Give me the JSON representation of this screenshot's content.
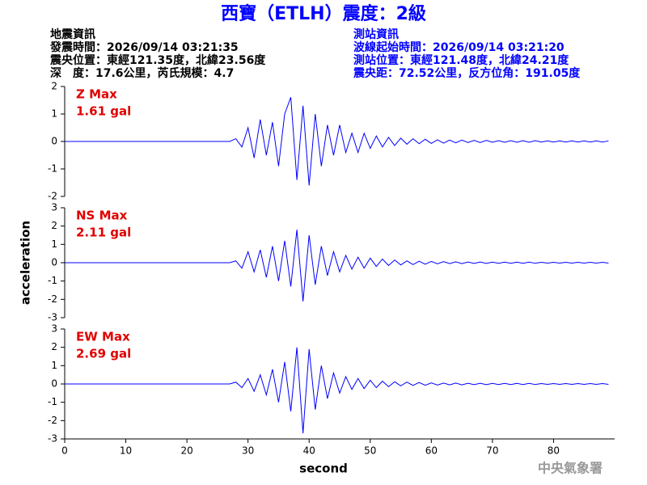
{
  "header": {
    "title": "西寶（ETLH）震度：2級",
    "left": [
      "地震資訊",
      "發震時間：2026/09/14 03:21:35",
      "震央位置：東經121.35度，北緯23.56度",
      "深　度：17.6公里，芮氏規模：4.7"
    ],
    "right": [
      "測站資訊",
      "波線起始時間：2026/09/14 03:21:20",
      "測站位置：東經121.48度，北緯24.21度",
      "震央距：72.52公里，反方位角：191.05度"
    ],
    "footer": "中央氣象署"
  },
  "chart_data": [
    {
      "type": "line",
      "annotation": [
        "Z Max",
        "1.61 gal"
      ],
      "x": [
        0,
        27,
        28,
        29,
        30,
        31,
        32,
        33,
        34,
        35,
        36,
        37,
        38,
        39,
        40,
        41,
        42,
        43,
        44,
        45,
        46,
        47,
        48,
        49,
        50,
        51,
        52,
        53,
        54,
        55,
        56,
        57,
        58,
        59,
        60,
        61,
        62,
        63,
        64,
        65,
        66,
        67,
        68,
        69,
        70,
        71,
        72,
        73,
        74,
        75,
        76,
        77,
        78,
        79,
        80,
        81,
        82,
        83,
        84,
        85,
        86,
        87,
        88,
        89
      ],
      "series": [
        {
          "color": "#0000ff",
          "values": [
            0,
            0,
            0.1,
            -0.2,
            0.5,
            -0.6,
            0.8,
            -0.5,
            0.7,
            -0.9,
            1.0,
            1.61,
            -1.4,
            1.3,
            -1.6,
            1.0,
            -0.9,
            0.6,
            -0.5,
            0.6,
            -0.4,
            0.3,
            -0.4,
            0.3,
            -0.25,
            0.2,
            -0.2,
            0.15,
            -0.15,
            0.12,
            -0.1,
            0.1,
            -0.08,
            0.08,
            -0.07,
            0.06,
            -0.06,
            0.05,
            -0.05,
            0.05,
            -0.04,
            0.04,
            -0.04,
            0.04,
            -0.03,
            0.03,
            -0.03,
            0.03,
            -0.03,
            0.03,
            -0.03,
            0.03,
            -0.02,
            0.02,
            -0.02,
            0.02,
            -0.02,
            0.02,
            -0.02,
            0.02,
            -0.02,
            0.02,
            -0.02,
            0.02
          ]
        }
      ],
      "xlim": [
        0,
        90
      ],
      "ylim": [
        -2,
        2
      ],
      "yticks": [
        -2,
        -1,
        0,
        1,
        2
      ]
    },
    {
      "type": "line",
      "annotation": [
        "NS Max",
        "2.11 gal"
      ],
      "ylabel": "acceleration",
      "x": [
        0,
        27,
        28,
        29,
        30,
        31,
        32,
        33,
        34,
        35,
        36,
        37,
        38,
        39,
        40,
        41,
        42,
        43,
        44,
        45,
        46,
        47,
        48,
        49,
        50,
        51,
        52,
        53,
        54,
        55,
        56,
        57,
        58,
        59,
        60,
        61,
        62,
        63,
        64,
        65,
        66,
        67,
        68,
        69,
        70,
        71,
        72,
        73,
        74,
        75,
        76,
        77,
        78,
        79,
        80,
        81,
        82,
        83,
        84,
        85,
        86,
        87,
        88,
        89
      ],
      "series": [
        {
          "color": "#0000ff",
          "values": [
            0,
            0,
            0.1,
            -0.3,
            0.6,
            -0.5,
            0.7,
            -0.8,
            0.9,
            -1.0,
            1.2,
            -1.3,
            1.8,
            -2.11,
            1.5,
            -1.2,
            0.9,
            -0.7,
            0.6,
            -0.5,
            0.4,
            -0.35,
            0.3,
            -0.3,
            0.25,
            -0.2,
            0.2,
            -0.15,
            0.15,
            -0.12,
            0.1,
            -0.1,
            0.08,
            -0.08,
            0.07,
            -0.06,
            0.06,
            -0.05,
            0.05,
            -0.05,
            0.04,
            -0.04,
            0.04,
            -0.04,
            0.03,
            -0.03,
            0.03,
            -0.03,
            0.03,
            -0.03,
            0.03,
            -0.03,
            0.02,
            -0.02,
            0.02,
            -0.02,
            0.02,
            -0.02,
            0.02,
            -0.02,
            0.02,
            -0.02,
            0.02,
            -0.02
          ]
        }
      ],
      "xlim": [
        0,
        90
      ],
      "ylim": [
        -3,
        3
      ],
      "yticks": [
        -3,
        -2,
        -1,
        0,
        1,
        2,
        3
      ]
    },
    {
      "type": "line",
      "annotation": [
        "EW Max",
        "2.69 gal"
      ],
      "xlabel": "second",
      "x": [
        0,
        27,
        28,
        29,
        30,
        31,
        32,
        33,
        34,
        35,
        36,
        37,
        38,
        39,
        40,
        41,
        42,
        43,
        44,
        45,
        46,
        47,
        48,
        49,
        50,
        51,
        52,
        53,
        54,
        55,
        56,
        57,
        58,
        59,
        60,
        61,
        62,
        63,
        64,
        65,
        66,
        67,
        68,
        69,
        70,
        71,
        72,
        73,
        74,
        75,
        76,
        77,
        78,
        79,
        80,
        81,
        82,
        83,
        84,
        85,
        86,
        87,
        88,
        89
      ],
      "series": [
        {
          "color": "#0000ff",
          "values": [
            0,
            0,
            0.1,
            -0.2,
            0.3,
            -0.4,
            0.5,
            -0.6,
            0.8,
            -1.0,
            1.2,
            -1.5,
            2.0,
            -2.69,
            1.9,
            -1.4,
            1.0,
            -0.8,
            0.6,
            -0.5,
            0.4,
            -0.3,
            0.3,
            -0.25,
            0.2,
            -0.2,
            0.15,
            -0.15,
            0.12,
            -0.1,
            0.1,
            -0.08,
            0.08,
            -0.07,
            0.06,
            -0.06,
            0.05,
            -0.05,
            0.05,
            -0.05,
            0.04,
            -0.04,
            0.04,
            -0.04,
            0.03,
            -0.03,
            0.03,
            -0.03,
            0.03,
            -0.03,
            0.03,
            -0.03,
            0.02,
            -0.02,
            0.02,
            -0.02,
            0.02,
            -0.02,
            0.02,
            -0.02,
            0.02,
            -0.02,
            0.02,
            -0.02
          ]
        }
      ],
      "xlim": [
        0,
        90
      ],
      "ylim": [
        -3,
        3
      ],
      "yticks": [
        -3,
        -2,
        -1,
        0,
        1,
        2,
        3
      ],
      "xticks": [
        0,
        10,
        20,
        30,
        40,
        50,
        60,
        70,
        80
      ]
    }
  ]
}
